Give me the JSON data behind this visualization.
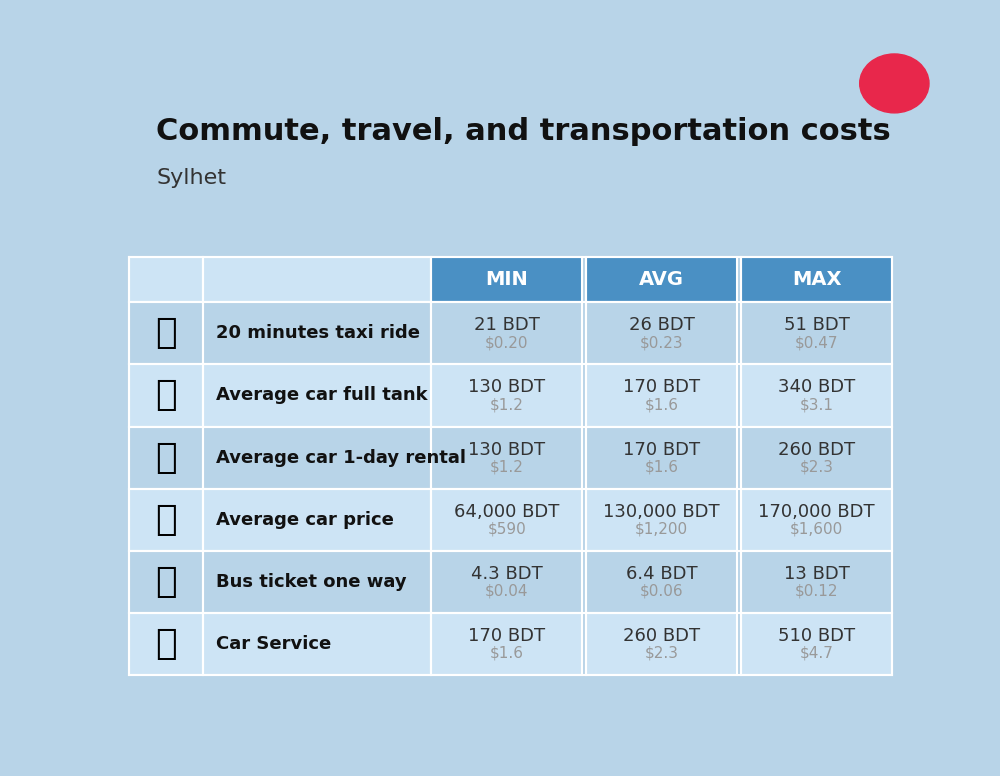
{
  "title": "Commute, travel, and transportation costs",
  "subtitle": "Sylhet",
  "title_fontsize": 22,
  "subtitle_fontsize": 16,
  "bg_color": "#b8d4e8",
  "header_bg": "#4a90c4",
  "header_text_color": "#ffffff",
  "row_bg_light": "#cde4f5",
  "row_bg_dark": "#b8d4e8",
  "cell_text_color": "#333333",
  "usd_text_color": "#999999",
  "label_text_color": "#111111",
  "columns": [
    "MIN",
    "AVG",
    "MAX"
  ],
  "rows": [
    {
      "label": "20 minutes taxi ride",
      "min_bdt": "21 BDT",
      "min_usd": "$0.20",
      "avg_bdt": "26 BDT",
      "avg_usd": "$0.23",
      "max_bdt": "51 BDT",
      "max_usd": "$0.47"
    },
    {
      "label": "Average car full tank",
      "min_bdt": "130 BDT",
      "min_usd": "$1.2",
      "avg_bdt": "170 BDT",
      "avg_usd": "$1.6",
      "max_bdt": "340 BDT",
      "max_usd": "$3.1"
    },
    {
      "label": "Average car 1-day rental",
      "min_bdt": "130 BDT",
      "min_usd": "$1.2",
      "avg_bdt": "170 BDT",
      "avg_usd": "$1.6",
      "max_bdt": "260 BDT",
      "max_usd": "$2.3"
    },
    {
      "label": "Average car price",
      "min_bdt": "64,000 BDT",
      "min_usd": "$590",
      "avg_bdt": "130,000 BDT",
      "avg_usd": "$1,200",
      "max_bdt": "170,000 BDT",
      "max_usd": "$1,600"
    },
    {
      "label": "Bus ticket one way",
      "min_bdt": "4.3 BDT",
      "min_usd": "$0.04",
      "avg_bdt": "6.4 BDT",
      "avg_usd": "$0.06",
      "max_bdt": "13 BDT",
      "max_usd": "$0.12"
    },
    {
      "label": "Car Service",
      "min_bdt": "170 BDT",
      "min_usd": "$1.6",
      "avg_bdt": "260 BDT",
      "avg_usd": "$2.3",
      "max_bdt": "510 BDT",
      "max_usd": "$4.7"
    }
  ],
  "flag_green": "#2d862d",
  "flag_red": "#e8274b",
  "icon_emojis": [
    "🚖",
    "⛽",
    "🚙",
    "🚗",
    "🚌",
    "🔧"
  ]
}
